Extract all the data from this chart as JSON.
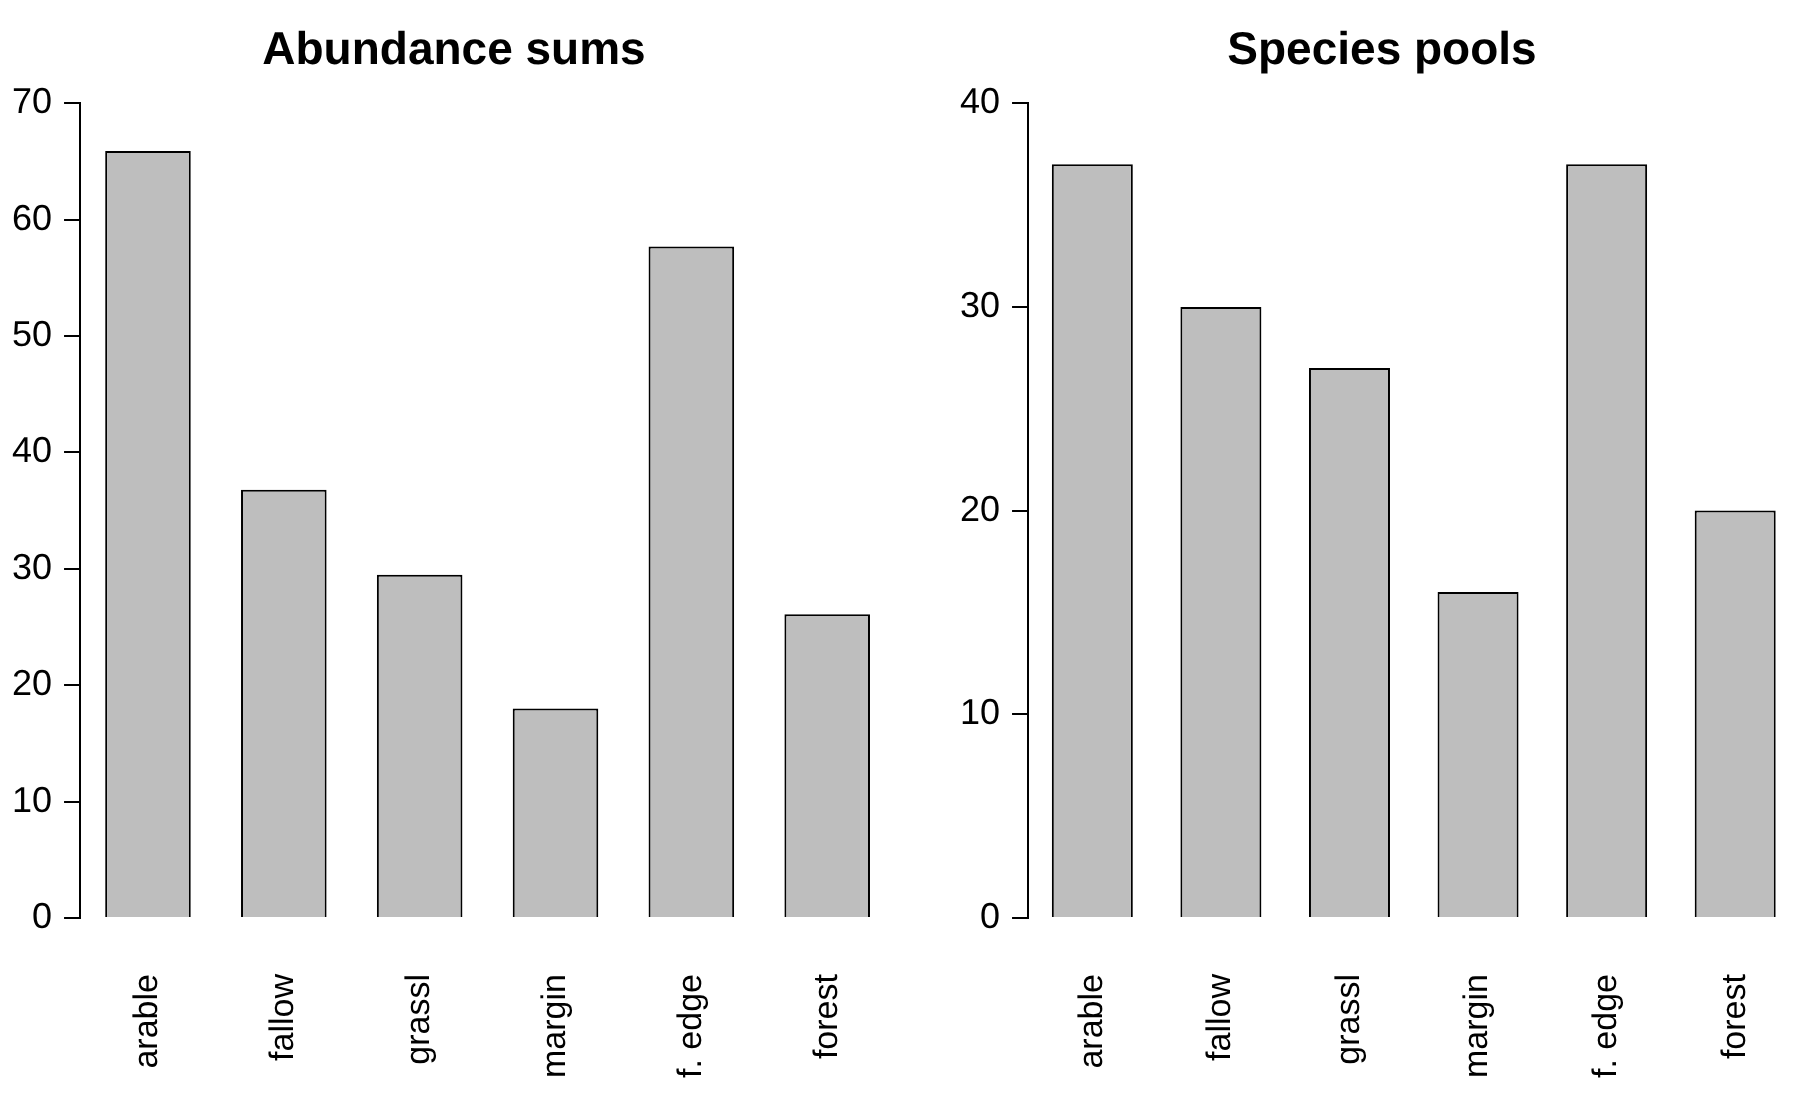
{
  "chart_data": [
    {
      "type": "bar",
      "title": "Abundance sums",
      "categories": [
        "arable",
        "fallow",
        "grassl",
        "margin",
        "f. edge",
        "forest"
      ],
      "values": [
        65.9,
        36.8,
        29.5,
        18.0,
        57.7,
        26.1
      ],
      "color": "#bebebe",
      "ylim": [
        0,
        70
      ],
      "yticks": [
        0,
        10,
        20,
        30,
        40,
        50,
        60,
        70
      ]
    },
    {
      "type": "bar",
      "title": "Species pools",
      "categories": [
        "arable",
        "fallow",
        "grassl",
        "margin",
        "f. edge",
        "forest"
      ],
      "values": [
        37,
        30,
        27,
        16,
        37,
        20
      ],
      "color": "#bebebe",
      "ylim": [
        0,
        40
      ],
      "yticks": [
        0,
        10,
        20,
        30,
        40
      ]
    }
  ]
}
